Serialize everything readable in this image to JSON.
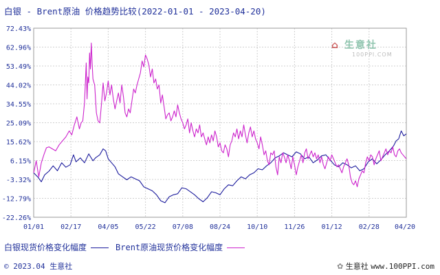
{
  "title": "白银 - Brent原油 价格趋势比较(2022-01-01 - 2023-04-20)",
  "chart_data": {
    "type": "line",
    "title": "白银 - Brent原油 价格趋势比较(2022-01-01 - 2023-04-20)",
    "xlabel": "",
    "ylabel": "",
    "x_tick_labels": [
      "01/01",
      "02/17",
      "04/05",
      "05/22",
      "07/08",
      "08/24",
      "10/10",
      "11/26",
      "01/12",
      "02/28",
      "04/20"
    ],
    "y_tick_labels": [
      "72.43%",
      "62.96%",
      "53.49%",
      "44.02%",
      "34.55%",
      "25.09%",
      "15.62%",
      "6.15%",
      "-3.32%",
      "-12.79%",
      "-22.26%"
    ],
    "ylim": [
      -22.26,
      72.43
    ],
    "grid": true,
    "legend_position": "bottom",
    "series": [
      {
        "name": "白银现货价格变化幅度",
        "color": "#1a1a9c",
        "points": [
          [
            0,
            0
          ],
          [
            5,
            -2.2
          ],
          [
            9,
            -4.5
          ],
          [
            13,
            -1
          ],
          [
            18,
            0.8
          ],
          [
            23,
            3.5
          ],
          [
            28,
            1
          ],
          [
            33,
            5
          ],
          [
            38,
            2.8
          ],
          [
            43,
            4
          ],
          [
            47,
            9
          ],
          [
            50,
            5.5
          ],
          [
            55,
            7.5
          ],
          [
            60,
            5
          ],
          [
            65,
            9.5
          ],
          [
            70,
            6
          ],
          [
            73,
            7.5
          ],
          [
            78,
            9
          ],
          [
            82,
            12
          ],
          [
            85,
            11
          ],
          [
            88,
            7
          ],
          [
            92,
            5
          ],
          [
            96,
            3
          ],
          [
            100,
            -0.5
          ],
          [
            105,
            -2
          ],
          [
            110,
            -3.5
          ],
          [
            115,
            -2
          ],
          [
            120,
            -3
          ],
          [
            125,
            -4
          ],
          [
            130,
            -7
          ],
          [
            135,
            -8
          ],
          [
            140,
            -9
          ],
          [
            145,
            -11
          ],
          [
            150,
            -14
          ],
          [
            155,
            -15
          ],
          [
            160,
            -12
          ],
          [
            165,
            -11
          ],
          [
            170,
            -10.5
          ],
          [
            175,
            -7.5
          ],
          [
            180,
            -8
          ],
          [
            185,
            -9.5
          ],
          [
            190,
            -11
          ],
          [
            195,
            -13
          ],
          [
            200,
            -14.5
          ],
          [
            205,
            -12.5
          ],
          [
            210,
            -9.5
          ],
          [
            215,
            -10
          ],
          [
            220,
            -11
          ],
          [
            225,
            -8
          ],
          [
            230,
            -6
          ],
          [
            235,
            -6.5
          ],
          [
            240,
            -4
          ],
          [
            245,
            -2
          ],
          [
            250,
            -3
          ],
          [
            255,
            -1
          ],
          [
            260,
            0
          ],
          [
            265,
            2
          ],
          [
            270,
            1.5
          ],
          [
            275,
            3.5
          ],
          [
            280,
            5
          ],
          [
            285,
            7.5
          ],
          [
            290,
            8.5
          ],
          [
            295,
            10
          ],
          [
            300,
            9
          ],
          [
            305,
            8
          ],
          [
            310,
            10.5
          ],
          [
            315,
            9.5
          ],
          [
            320,
            7
          ],
          [
            325,
            8
          ],
          [
            330,
            5
          ],
          [
            335,
            6.5
          ],
          [
            340,
            8.5
          ],
          [
            345,
            9
          ],
          [
            350,
            6.5
          ],
          [
            355,
            4
          ],
          [
            360,
            3
          ],
          [
            365,
            5
          ],
          [
            370,
            4
          ],
          [
            375,
            2.5
          ],
          [
            380,
            3.5
          ],
          [
            385,
            1
          ],
          [
            390,
            2
          ],
          [
            395,
            5.5
          ],
          [
            400,
            7
          ],
          [
            405,
            4.5
          ],
          [
            410,
            6.5
          ],
          [
            415,
            9
          ],
          [
            420,
            11
          ],
          [
            425,
            13.5
          ],
          [
            428,
            16
          ],
          [
            431,
            17
          ],
          [
            434,
            21
          ],
          [
            437,
            18.5
          ],
          [
            440,
            19.5
          ]
        ]
      },
      {
        "name": "Brent原油现货价格变化幅度",
        "color": "#cc22cc",
        "points": [
          [
            0,
            0
          ],
          [
            3,
            6
          ],
          [
            6,
            -2
          ],
          [
            9,
            5
          ],
          [
            12,
            9
          ],
          [
            15,
            12.5
          ],
          [
            18,
            13
          ],
          [
            22,
            12
          ],
          [
            26,
            11
          ],
          [
            30,
            14
          ],
          [
            34,
            16
          ],
          [
            38,
            18
          ],
          [
            42,
            21
          ],
          [
            45,
            19
          ],
          [
            48,
            24
          ],
          [
            51,
            28
          ],
          [
            54,
            22
          ],
          [
            56,
            25
          ],
          [
            58,
            26
          ],
          [
            60,
            35
          ],
          [
            62,
            55
          ],
          [
            63,
            37
          ],
          [
            64,
            48
          ],
          [
            65,
            45
          ],
          [
            66,
            60
          ],
          [
            67,
            52
          ],
          [
            68,
            65
          ],
          [
            69,
            55
          ],
          [
            70,
            47
          ],
          [
            72,
            44
          ],
          [
            74,
            30
          ],
          [
            76,
            26
          ],
          [
            78,
            25
          ],
          [
            80,
            34
          ],
          [
            82,
            45
          ],
          [
            84,
            36
          ],
          [
            86,
            40
          ],
          [
            88,
            46
          ],
          [
            90,
            39
          ],
          [
            92,
            44
          ],
          [
            94,
            37
          ],
          [
            96,
            32
          ],
          [
            98,
            36
          ],
          [
            100,
            40
          ],
          [
            102,
            35
          ],
          [
            104,
            44
          ],
          [
            106,
            38
          ],
          [
            108,
            30
          ],
          [
            110,
            28
          ],
          [
            112,
            32
          ],
          [
            114,
            30
          ],
          [
            116,
            36
          ],
          [
            118,
            42
          ],
          [
            120,
            40
          ],
          [
            122,
            44
          ],
          [
            124,
            47
          ],
          [
            126,
            50
          ],
          [
            128,
            56
          ],
          [
            130,
            53
          ],
          [
            132,
            59
          ],
          [
            134,
            57
          ],
          [
            136,
            54
          ],
          [
            138,
            48
          ],
          [
            140,
            52
          ],
          [
            142,
            45
          ],
          [
            144,
            47
          ],
          [
            146,
            42
          ],
          [
            148,
            44
          ],
          [
            150,
            35
          ],
          [
            152,
            39
          ],
          [
            154,
            33
          ],
          [
            156,
            27
          ],
          [
            158,
            29
          ],
          [
            160,
            30
          ],
          [
            162,
            26
          ],
          [
            164,
            28
          ],
          [
            166,
            31
          ],
          [
            168,
            28
          ],
          [
            170,
            34
          ],
          [
            172,
            30
          ],
          [
            174,
            27
          ],
          [
            176,
            25
          ],
          [
            178,
            22
          ],
          [
            180,
            24
          ],
          [
            182,
            27
          ],
          [
            184,
            20
          ],
          [
            186,
            25
          ],
          [
            188,
            21
          ],
          [
            190,
            18
          ],
          [
            192,
            22
          ],
          [
            194,
            20
          ],
          [
            196,
            24
          ],
          [
            198,
            18
          ],
          [
            200,
            20
          ],
          [
            202,
            17
          ],
          [
            204,
            14
          ],
          [
            206,
            18
          ],
          [
            208,
            15
          ],
          [
            210,
            19
          ],
          [
            212,
            16
          ],
          [
            214,
            21
          ],
          [
            216,
            18
          ],
          [
            218,
            13
          ],
          [
            220,
            15
          ],
          [
            222,
            11
          ],
          [
            224,
            10
          ],
          [
            226,
            14
          ],
          [
            228,
            12
          ],
          [
            230,
            8
          ],
          [
            232,
            14
          ],
          [
            234,
            16
          ],
          [
            236,
            20
          ],
          [
            238,
            18
          ],
          [
            240,
            22
          ],
          [
            242,
            17
          ],
          [
            244,
            21
          ],
          [
            246,
            18
          ],
          [
            248,
            24
          ],
          [
            250,
            19
          ],
          [
            252,
            15
          ],
          [
            254,
            20
          ],
          [
            256,
            23
          ],
          [
            258,
            18
          ],
          [
            260,
            21
          ],
          [
            262,
            17
          ],
          [
            264,
            15
          ],
          [
            266,
            12
          ],
          [
            268,
            18
          ],
          [
            270,
            14
          ],
          [
            272,
            9
          ],
          [
            274,
            11
          ],
          [
            276,
            6
          ],
          [
            278,
            4
          ],
          [
            280,
            10
          ],
          [
            282,
            9
          ],
          [
            284,
            11
          ],
          [
            286,
            3
          ],
          [
            288,
            -1
          ],
          [
            290,
            8
          ],
          [
            292,
            5
          ],
          [
            294,
            10
          ],
          [
            296,
            8
          ],
          [
            298,
            5
          ],
          [
            300,
            9
          ],
          [
            302,
            6
          ],
          [
            304,
            2
          ],
          [
            306,
            8
          ],
          [
            308,
            4
          ],
          [
            310,
            -1
          ],
          [
            312,
            3
          ],
          [
            314,
            6
          ],
          [
            316,
            9
          ],
          [
            318,
            5
          ],
          [
            320,
            10
          ],
          [
            322,
            12
          ],
          [
            324,
            7
          ],
          [
            326,
            9
          ],
          [
            328,
            11
          ],
          [
            330,
            8
          ],
          [
            332,
            10
          ],
          [
            334,
            7
          ],
          [
            336,
            9
          ],
          [
            338,
            5
          ],
          [
            340,
            8
          ],
          [
            342,
            4
          ],
          [
            344,
            2
          ],
          [
            346,
            5
          ],
          [
            348,
            8
          ],
          [
            350,
            6
          ],
          [
            352,
            9
          ],
          [
            354,
            7
          ],
          [
            356,
            5
          ],
          [
            358,
            3
          ],
          [
            360,
            4
          ],
          [
            362,
            2
          ],
          [
            364,
            0
          ],
          [
            366,
            3
          ],
          [
            368,
            5
          ],
          [
            370,
            7
          ],
          [
            372,
            4
          ],
          [
            374,
            -2
          ],
          [
            376,
            -5
          ],
          [
            378,
            -6
          ],
          [
            380,
            -4
          ],
          [
            382,
            -7
          ],
          [
            384,
            -3
          ],
          [
            386,
            -1
          ],
          [
            388,
            1
          ],
          [
            390,
            0
          ],
          [
            392,
            5
          ],
          [
            394,
            8
          ],
          [
            396,
            6
          ],
          [
            398,
            9
          ],
          [
            400,
            8
          ],
          [
            402,
            4
          ],
          [
            404,
            7
          ],
          [
            406,
            9
          ],
          [
            408,
            11
          ],
          [
            410,
            6
          ],
          [
            412,
            8
          ],
          [
            414,
            10
          ],
          [
            416,
            12
          ],
          [
            418,
            9
          ],
          [
            420,
            11
          ],
          [
            422,
            10
          ],
          [
            424,
            13
          ],
          [
            426,
            9
          ],
          [
            428,
            8
          ],
          [
            430,
            11
          ],
          [
            432,
            12
          ],
          [
            434,
            10
          ],
          [
            436,
            9
          ],
          [
            438,
            8
          ],
          [
            440,
            7
          ]
        ]
      }
    ]
  },
  "legend": {
    "items": [
      {
        "label": "白银现货价格变化幅度",
        "color": "#1a1a9c"
      },
      {
        "label": "Brent原油现货价格变化幅度",
        "color": "#cc22cc"
      }
    ]
  },
  "footer": "© 2023.04 生意社",
  "watermark": {
    "main": "生意社",
    "sub": "100PPI.COM"
  },
  "brand": {
    "name": "生意社",
    "url": "www.100PPI.com"
  }
}
